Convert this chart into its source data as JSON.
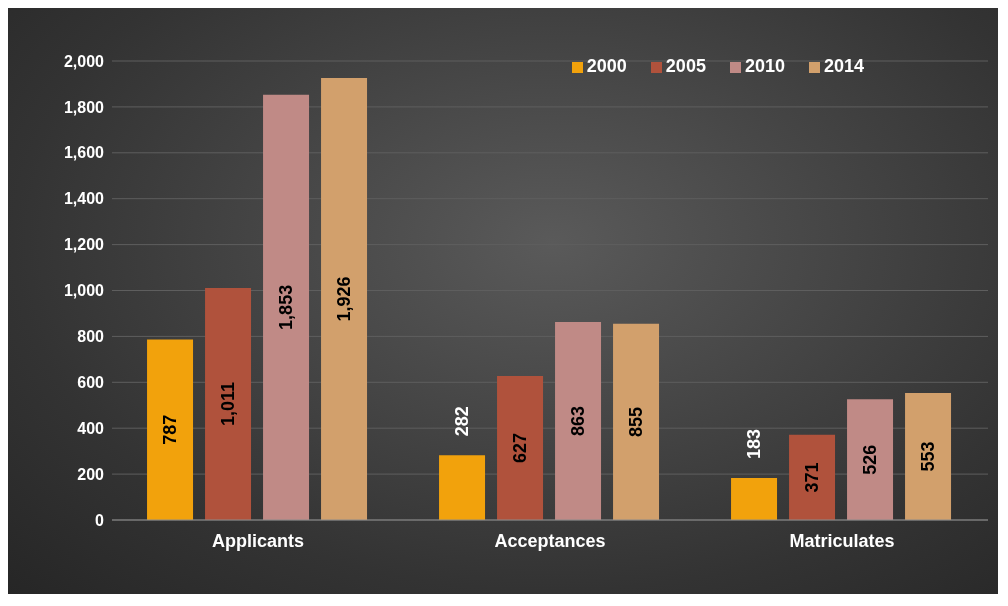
{
  "chart_data": {
    "type": "bar",
    "categories": [
      "Applicants",
      "Acceptances",
      "Matriculates"
    ],
    "series": [
      {
        "name": "2000",
        "color": "#f2a20c",
        "values": [
          787,
          282,
          183
        ],
        "value_labels": [
          "787",
          "282",
          "183"
        ]
      },
      {
        "name": "2005",
        "color": "#b0523c",
        "values": [
          1011,
          627,
          371
        ],
        "value_labels": [
          "1,011",
          "627",
          "371"
        ]
      },
      {
        "name": "2010",
        "color": "#c08a86",
        "values": [
          1853,
          863,
          526
        ],
        "value_labels": [
          "1,853",
          "863",
          "526"
        ]
      },
      {
        "name": "2014",
        "color": "#d2a06c",
        "values": [
          1926,
          855,
          553
        ],
        "value_labels": [
          "1,926",
          "855",
          "553"
        ]
      }
    ],
    "ylim": [
      0,
      2000
    ],
    "yticks": [
      0,
      200,
      400,
      600,
      800,
      {
        "value": 1000,
        "label": "1,000"
      },
      {
        "value": 1200,
        "label": "1,200"
      },
      {
        "value": 1400,
        "label": "1,400"
      },
      {
        "value": 1600,
        "label": "1,600"
      },
      {
        "value": 1800,
        "label": "1,800"
      },
      {
        "value": 2000,
        "label": "2,000"
      }
    ],
    "grid": "y",
    "legend": "top right"
  }
}
